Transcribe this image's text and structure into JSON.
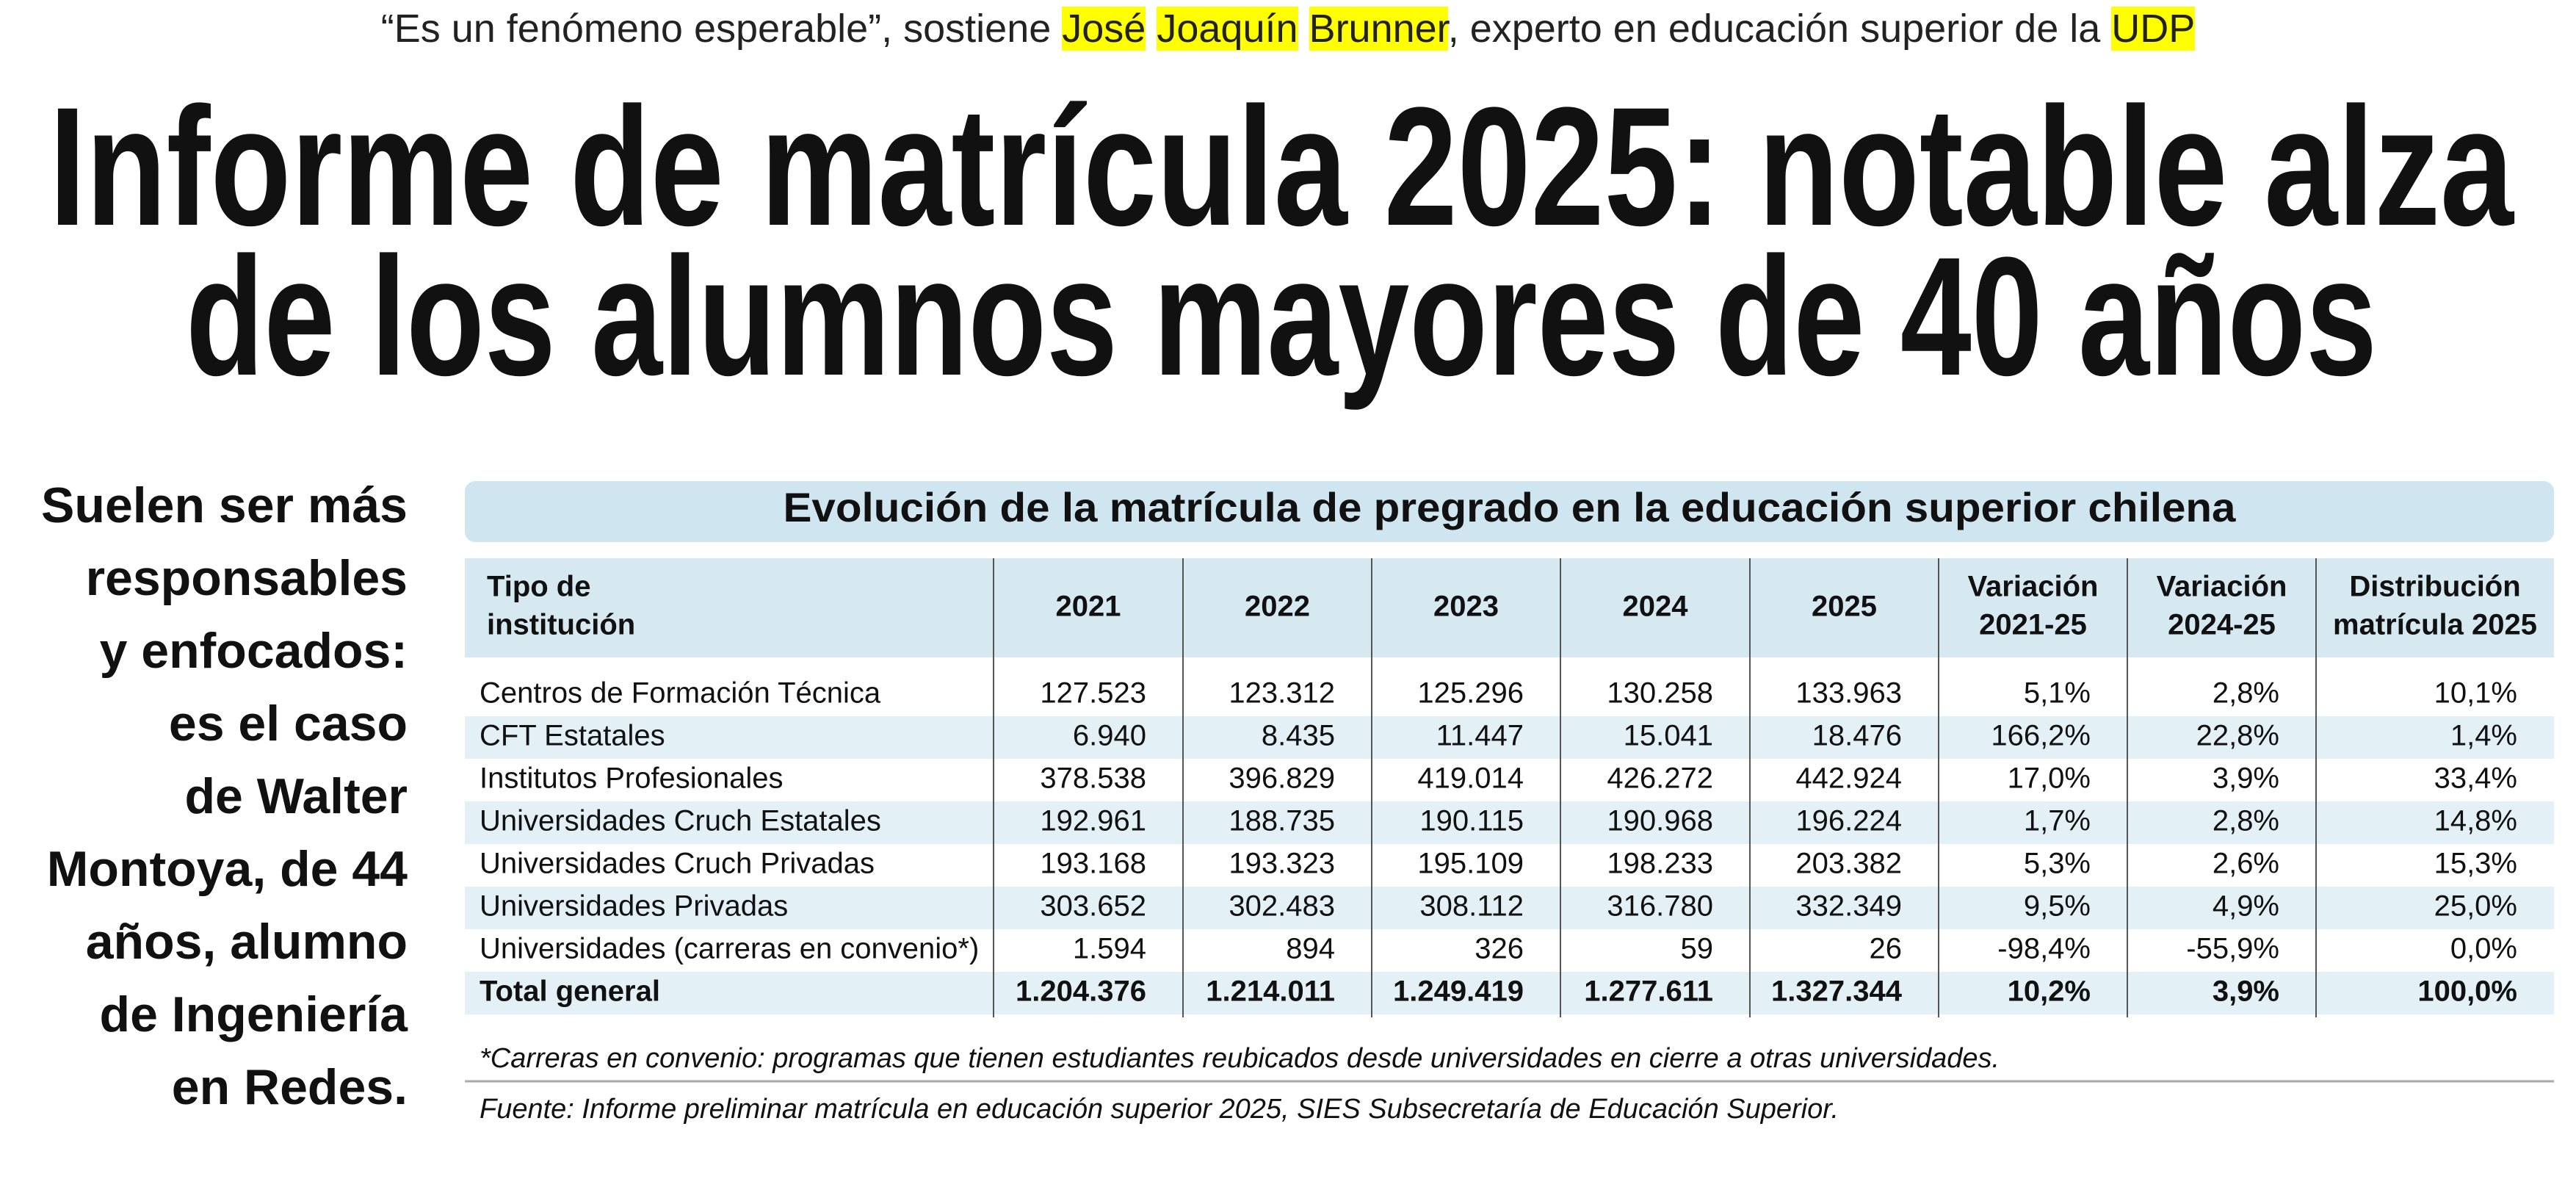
{
  "kicker": [
    {
      "text": "“Es un fenómeno esperable”, sostiene ",
      "highlight": false
    },
    {
      "text": "José",
      "highlight": true
    },
    {
      "text": " ",
      "highlight": false
    },
    {
      "text": "Joaquín",
      "highlight": true
    },
    {
      "text": " ",
      "highlight": false
    },
    {
      "text": "Brunner",
      "highlight": true
    },
    {
      "text": ", experto en educación superior de la ",
      "highlight": false
    },
    {
      "text": "UDP",
      "highlight": true
    }
  ],
  "headline": [
    "Informe de matrícula 2025: notable alza",
    "de los alumnos mayores de 40 años"
  ],
  "sidebar": [
    "Suelen ser más",
    "responsables",
    "y enfocados:",
    "es el caso",
    "de Walter",
    "Montoya, de 44",
    "años, alumno",
    "de Ingeniería",
    "en Redes."
  ],
  "table": {
    "title": "Evolución de la matrícula de pregrado en la educación superior chilena",
    "header": [
      [
        "Tipo de",
        "institución"
      ],
      [
        "2021"
      ],
      [
        "2022"
      ],
      [
        "2023"
      ],
      [
        "2024"
      ],
      [
        "2025"
      ],
      [
        "Variación",
        "2021-25"
      ],
      [
        "Variación",
        "2024-25"
      ],
      [
        "Distribución",
        "matrícula 2025"
      ]
    ],
    "rows": [
      [
        "Centros de Formación Técnica",
        "127.523",
        "123.312",
        "125.296",
        "130.258",
        "133.963",
        "5,1%",
        "2,8%",
        "10,1%"
      ],
      [
        "CFT Estatales",
        "6.940",
        "8.435",
        "11.447",
        "15.041",
        "18.476",
        "166,2%",
        "22,8%",
        "1,4%"
      ],
      [
        "Institutos Profesionales",
        "378.538",
        "396.829",
        "419.014",
        "426.272",
        "442.924",
        "17,0%",
        "3,9%",
        "33,4%"
      ],
      [
        "Universidades Cruch Estatales",
        "192.961",
        "188.735",
        "190.115",
        "190.968",
        "196.224",
        "1,7%",
        "2,8%",
        "14,8%"
      ],
      [
        "Universidades Cruch Privadas",
        "193.168",
        "193.323",
        "195.109",
        "198.233",
        "203.382",
        "5,3%",
        "2,6%",
        "15,3%"
      ],
      [
        "Universidades Privadas",
        "303.652",
        "302.483",
        "308.112",
        "316.780",
        "332.349",
        "9,5%",
        "4,9%",
        "25,0%"
      ],
      [
        "Universidades (carreras en convenio*)",
        "1.594",
        "894",
        "326",
        "59",
        "26",
        "-98,4%",
        "-55,9%",
        "0,0%"
      ],
      [
        "Total general",
        "1.204.376",
        "1.214.011",
        "1.249.419",
        "1.277.611",
        "1.327.344",
        "10,2%",
        "3,9%",
        "100,0%"
      ]
    ],
    "footnote": "*Carreras en convenio: programas que tienen estudiantes reubicados desde universidades en cierre a otras universidades.",
    "source": "Fuente: Informe preliminar matrícula en educación superior 2025, SIES Subsecretaría de Educación Superior."
  }
}
